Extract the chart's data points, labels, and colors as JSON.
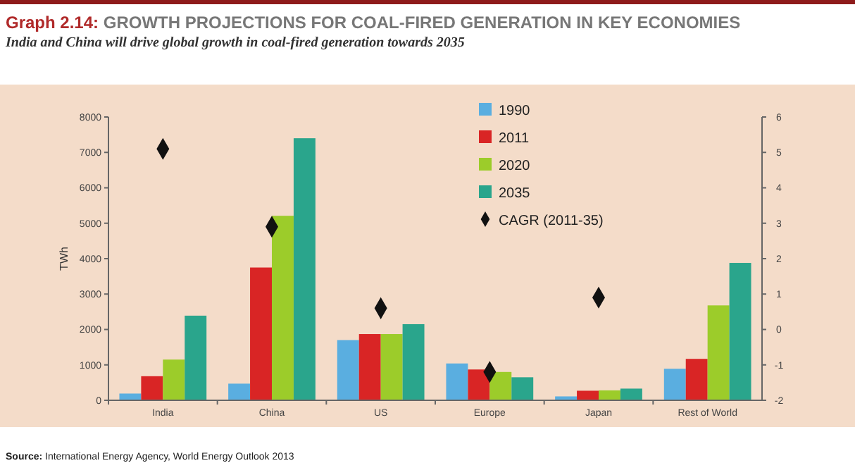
{
  "chart_data": {
    "type": "bar",
    "title": "Graph 2.14: GROWTH PROJECTIONS FOR COAL-FIRED GENERATION IN KEY ECONOMIES",
    "subtitle": "India and China will drive global growth in coal-fired generation towards 2035",
    "ylabel": "TWh",
    "categories": [
      "India",
      "China",
      "US",
      "Europe",
      "Japan",
      "Rest of World"
    ],
    "series": [
      {
        "name": "1990",
        "color": "#5aaee0",
        "values": [
          190,
          470,
          1700,
          1040,
          110,
          890
        ]
      },
      {
        "name": "2011",
        "color": "#d92525",
        "values": [
          680,
          3750,
          1870,
          870,
          270,
          1170
        ]
      },
      {
        "name": "2020",
        "color": "#9ccc2a",
        "values": [
          1150,
          5210,
          1870,
          800,
          280,
          2680
        ]
      },
      {
        "name": "2035",
        "color": "#2aa58c",
        "values": [
          2390,
          7400,
          2150,
          650,
          330,
          3880
        ]
      },
      {
        "name": "CAGR (2011-35)",
        "type": "scatter",
        "axis": "y2",
        "marker": "diamond",
        "color": "#111111",
        "x": [
          "India",
          "China",
          "US",
          "Europe",
          "Japan"
        ],
        "values": [
          5.1,
          2.9,
          0.6,
          -1.2,
          0.9
        ]
      }
    ],
    "ylim": [
      0,
      8000
    ],
    "yticks": [
      0,
      1000,
      2000,
      3000,
      4000,
      5000,
      6000,
      7000,
      8000
    ],
    "y2lim": [
      -2,
      6
    ],
    "y2ticks": [
      -2,
      -1,
      0,
      1,
      2,
      3,
      4,
      5,
      6
    ],
    "grid": false,
    "legend": "top",
    "annotations": [
      "Source: International Energy Agency, World Energy Outlook 2013"
    ]
  }
}
